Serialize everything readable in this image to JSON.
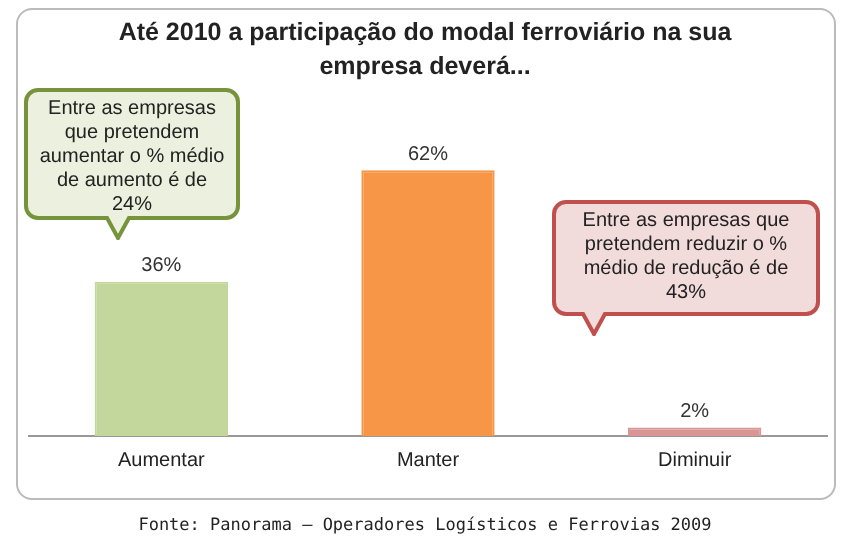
{
  "chart_data": {
    "type": "bar",
    "title": "Até 2010 a participação do modal ferroviário na sua empresa deverá...",
    "categories": [
      "Aumentar",
      "Manter",
      "Diminuir"
    ],
    "values": [
      36,
      62,
      2
    ],
    "colors": [
      "#c3d69b",
      "#f79646",
      "#d99694"
    ],
    "value_labels": [
      "36%",
      "62%",
      "2%"
    ],
    "grid": false,
    "legend": false,
    "annotations": [
      "Entre as empresas que pretendem aumentar o % médio de aumento é de 24%",
      "Entre as empresas que pretendem reduzir o % médio de redução é de 43%",
      "Fonte: Panorama – Operadores Logísticos e Ferrovias 2009"
    ]
  }
}
